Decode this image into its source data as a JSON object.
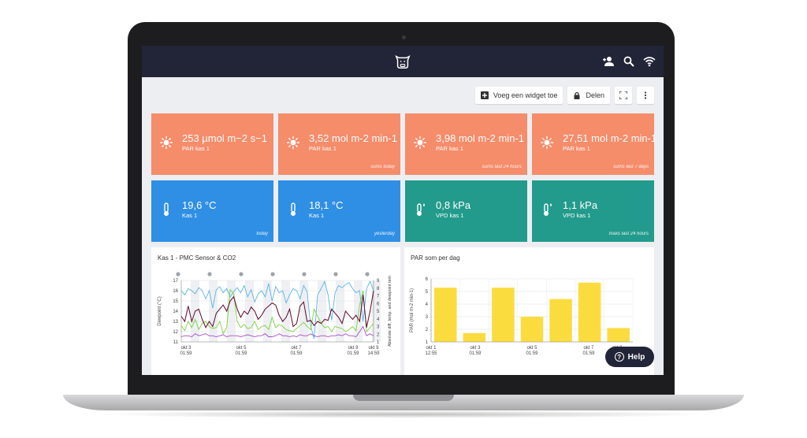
{
  "toolbar": {
    "add_widget_label": "Voeg een widget toe",
    "share_label": "Delen"
  },
  "cards": [
    {
      "value": "253 µmol m−2 s−1",
      "label": "PAR kas 1",
      "note": "",
      "icon": "sun-icon",
      "color": "#f58c6a"
    },
    {
      "value": "3,52 mol m-2 min-1",
      "label": "PAR kas 1",
      "note": "sums today",
      "icon": "sun-icon",
      "color": "#f58c6a"
    },
    {
      "value": "3,98 mol m-2 min-1",
      "label": "PAR kas 1",
      "note": "sums last 24 hours",
      "icon": "sun-icon",
      "color": "#f58c6a"
    },
    {
      "value": "27,51 mol m-2 min-1",
      "label": "PAR kas 1",
      "note": "sums last 7 days",
      "icon": "sun-icon",
      "color": "#f58c6a"
    },
    {
      "value": "19,6 °C",
      "label": "Kas 1",
      "note": "today",
      "icon": "thermometer-icon",
      "color": "#2f8fe5"
    },
    {
      "value": "18,1 °C",
      "label": "Kas 1",
      "note": "yesterday",
      "icon": "thermometer-icon",
      "color": "#2f8fe5"
    },
    {
      "value": "0,8 kPa",
      "label": "VPD kas 1",
      "note": "",
      "icon": "thermometer-drop-icon",
      "color": "#239b8c"
    },
    {
      "value": "1,1 kPa",
      "label": "VPD kas 1",
      "note": "maxs last 24 hours",
      "icon": "thermometer-drop-icon",
      "color": "#239b8c"
    }
  ],
  "line_panel": {
    "title": "Kas 1 - PMC Sensor & CO2"
  },
  "bar_panel": {
    "title": "PAR som per dag"
  },
  "help": {
    "label": "Help"
  },
  "chart_data": [
    {
      "type": "line",
      "title": "Kas 1 - PMC Sensor & CO2",
      "ylabel": "Dewpoint (°C)",
      "y2label": "Absolute diff. temp. and dewpoint tem",
      "ylim": [
        11,
        17
      ],
      "y2lim": [
        1,
        9
      ],
      "yticks": [
        11,
        12,
        13,
        14,
        15,
        16,
        17
      ],
      "y2ticks": [
        1,
        2,
        3,
        4,
        5,
        6,
        7,
        8,
        9
      ],
      "xtick_labels": [
        [
          "okt 3",
          "01:59"
        ],
        [
          "okt 5",
          "01:59"
        ],
        [
          "okt 7",
          "01:59"
        ],
        [
          "okt 9",
          "01:59"
        ],
        [
          "okt 9",
          "14:59"
        ]
      ],
      "series": [
        {
          "color": "#5ab4e6",
          "values": [
            16.0,
            15.6,
            16.2,
            16.0,
            15.7,
            16.3,
            16.0,
            15.2,
            16.0,
            14.3,
            16.1,
            16.4,
            15.8,
            16.2,
            15.4,
            15.9,
            16.3,
            15.8,
            16.5,
            15.4,
            16.1,
            14.9,
            15.7,
            16.0,
            15.4,
            16.7,
            15.0,
            16.4,
            15.8,
            16.0,
            14.8,
            15.6,
            16.2,
            16.0,
            15.2,
            16.5,
            15.9,
            12.6,
            11.3,
            15.6,
            16.2,
            16.9,
            15.6,
            13.1,
            15.8,
            16.5,
            16.3,
            16.6,
            16.8,
            16.2,
            15.8,
            16.0,
            13.0,
            16.2,
            16.9,
            16.0
          ]
        },
        {
          "color": "#7ad23c",
          "values": [
            12.6,
            12.1,
            13.0,
            12.4,
            13.2,
            12.2,
            12.8,
            13.0,
            12.5,
            12.3,
            12.4,
            13.0,
            11.8,
            12.4,
            16.1,
            15.7,
            13.0,
            12.4,
            12.7,
            12.3,
            12.4,
            13.0,
            12.2,
            12.5,
            12.6,
            12.2,
            13.4,
            12.4,
            12.7,
            12.5,
            12.2,
            12.1,
            12.0,
            12.3,
            12.6,
            12.9,
            12.5,
            12.2,
            14.2,
            13.5,
            12.8,
            12.4,
            12.5,
            12.0,
            12.5,
            12.4,
            12.3,
            12.0,
            12.2,
            12.5,
            12.1,
            14.6,
            16.0,
            12.0,
            12.4,
            12.8
          ]
        },
        {
          "color": "#6b1838",
          "values": [
            13.5,
            13.0,
            14.5,
            13.0,
            14.0,
            14.2,
            13.2,
            12.4,
            13.0,
            12.5,
            13.8,
            14.2,
            14.6,
            14.0,
            15.0,
            15.4,
            14.2,
            13.4,
            14.0,
            13.7,
            14.4,
            14.0,
            13.2,
            13.6,
            14.2,
            14.5,
            14.8,
            14.6,
            13.6,
            13.0,
            13.4,
            14.2,
            12.5,
            12.8,
            14.5,
            14.9,
            13.0,
            13.1,
            12.6,
            13.0,
            12.8,
            13.2,
            13.1,
            14.2,
            13.8,
            13.4,
            12.8,
            14.0,
            13.6,
            13.2,
            13.6,
            13.0,
            15.6,
            12.4,
            14.0,
            16.0
          ]
        },
        {
          "color": "#a94cc8",
          "values": [
            11.5,
            11.6,
            11.6,
            11.5,
            11.8,
            11.6,
            11.7,
            11.8,
            11.6,
            11.6,
            11.5,
            11.6,
            11.7,
            11.5,
            11.6,
            11.6,
            11.6,
            11.5,
            11.6,
            11.7,
            11.6,
            11.5,
            11.6,
            11.6,
            11.8,
            11.5,
            11.5,
            11.6,
            11.8,
            11.6,
            11.6,
            11.5,
            11.6,
            11.5,
            11.7,
            11.6,
            11.6,
            11.8,
            11.6,
            11.5,
            11.6,
            11.6,
            11.5,
            11.6,
            11.6,
            11.7,
            11.6,
            11.8,
            11.6,
            11.6,
            11.5,
            12.0,
            12.5,
            11.6,
            11.8,
            11.6
          ]
        }
      ]
    },
    {
      "type": "bar",
      "title": "PAR som per dag",
      "ylabel": "PAR (mol m-2 min-1)",
      "ylim": [
        1,
        6
      ],
      "yticks": [
        1,
        2,
        3,
        4,
        5,
        6
      ],
      "xtick_labels": [
        [
          "okt 1",
          "12:55"
        ],
        [
          "okt 3",
          "01:59"
        ],
        [
          "okt 5",
          "01:59"
        ],
        [
          "okt 7",
          "01:59"
        ],
        [
          "okt 9",
          "01:59"
        ]
      ],
      "values": [
        5.3,
        1.7,
        5.3,
        3.0,
        4.4,
        5.7,
        2.1
      ],
      "color": "#fbdc3f"
    }
  ]
}
